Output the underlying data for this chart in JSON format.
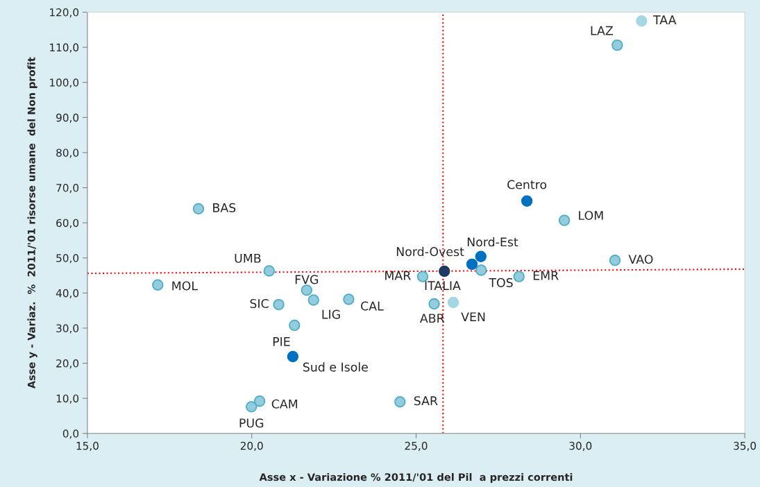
{
  "chart_data": {
    "type": "scatter",
    "xlabel": "Asse x - Variazione % 2011/'01 del Pil  a prezzi correnti",
    "ylabel": "Asse y - Variaz.  %  2011/'01 risorse umane  del Non profit",
    "xlim": [
      15,
      35
    ],
    "ylim": [
      0,
      120
    ],
    "xticks": [
      {
        "value": 15,
        "label": "15,0"
      },
      {
        "value": 20,
        "label": "20,0"
      },
      {
        "value": 25,
        "label": "25,0"
      },
      {
        "value": 30,
        "label": "30,0"
      },
      {
        "value": 35,
        "label": "35,0"
      }
    ],
    "yticks": [
      {
        "value": 0,
        "label": "0,0"
      },
      {
        "value": 10,
        "label": "10,0"
      },
      {
        "value": 20,
        "label": "20,0"
      },
      {
        "value": 30,
        "label": "30,0"
      },
      {
        "value": 40,
        "label": "40,0"
      },
      {
        "value": 50,
        "label": "50,0"
      },
      {
        "value": 60,
        "label": "60,0"
      },
      {
        "value": 70,
        "label": "70,0"
      },
      {
        "value": 80,
        "label": "80,0"
      },
      {
        "value": 90,
        "label": "90,0"
      },
      {
        "value": 100,
        "label": "100,0"
      },
      {
        "value": 110,
        "label": "110,0"
      },
      {
        "value": 120,
        "label": "120,0"
      }
    ],
    "grid": false,
    "legend": false,
    "marker": "circle",
    "series": [
      {
        "type": "line",
        "color": "#ff0000",
        "line_style": "dotted",
        "marker": "none",
        "x": [
          15,
          35
        ],
        "values": [
          45.6,
          46.8
        ]
      },
      {
        "color": "#93cddd",
        "x": [
          31.12,
          29.51,
          18.38,
          31.05,
          26.98,
          25.2,
          28.13,
          25.55,
          24.51,
          20.53,
          17.14,
          21.67,
          21.88,
          22.95,
          20.82,
          21.3,
          20.24,
          19.99
        ],
        "values": [
          110.6,
          60.7,
          64.0,
          49.3,
          46.5,
          44.7,
          44.7,
          36.9,
          9.0,
          46.3,
          42.3,
          40.8,
          38.0,
          38.2,
          36.7,
          30.8,
          9.2,
          7.6
        ]
      },
      {
        "color": "#a5d6e3",
        "x": [
          31.86,
          26.13
        ],
        "values": [
          117.5,
          37.3
        ]
      },
      {
        "color": "#0070c0",
        "x": [
          28.37,
          26.97,
          26.7,
          21.25
        ],
        "values": [
          66.2,
          50.4,
          48.2,
          21.9
        ]
      },
      {
        "color": "#1f3864",
        "x": [
          25.86
        ],
        "values": [
          46.2
        ]
      }
    ],
    "ref_lines": [
      {
        "axis": "x",
        "value": 25.82,
        "color": "#ff0000",
        "line_style": "dotted"
      }
    ],
    "annotations": [
      {
        "text": "TAA",
        "x": 31.86,
        "y": 117.5
      },
      {
        "text": "LAZ",
        "x": 31.12,
        "y": 110.6
      },
      {
        "text": "Centro",
        "x": 28.37,
        "y": 66.2
      },
      {
        "text": "LOM",
        "x": 29.51,
        "y": 60.7
      },
      {
        "text": "BAS",
        "x": 18.38,
        "y": 64.0
      },
      {
        "text": "Nord-Est",
        "x": 26.97,
        "y": 50.4
      },
      {
        "text": "Nord-Ovest",
        "x": 26.7,
        "y": 48.2
      },
      {
        "text": "VAO",
        "x": 31.05,
        "y": 49.3
      },
      {
        "text": "ITALIA",
        "x": 25.86,
        "y": 46.2
      },
      {
        "text": "TOS",
        "x": 26.98,
        "y": 46.5
      },
      {
        "text": "MAR",
        "x": 25.2,
        "y": 44.7
      },
      {
        "text": "EMR",
        "x": 28.13,
        "y": 44.7
      },
      {
        "text": "ABR",
        "x": 25.55,
        "y": 36.9
      },
      {
        "text": "VEN",
        "x": 26.13,
        "y": 37.3
      },
      {
        "text": "SAR",
        "x": 24.51,
        "y": 9.0
      },
      {
        "text": "UMB",
        "x": 20.53,
        "y": 46.3
      },
      {
        "text": "MOL",
        "x": 17.14,
        "y": 42.3
      },
      {
        "text": "FVG",
        "x": 21.67,
        "y": 40.8
      },
      {
        "text": "LIG",
        "x": 21.88,
        "y": 38.0
      },
      {
        "text": "CAL",
        "x": 22.95,
        "y": 38.2
      },
      {
        "text": "SIC",
        "x": 20.82,
        "y": 36.7
      },
      {
        "text": "PIE",
        "x": 21.3,
        "y": 30.8
      },
      {
        "text": "Sud e Isole",
        "x": 21.25,
        "y": 21.9
      },
      {
        "text": "CAM",
        "x": 20.24,
        "y": 9.2
      },
      {
        "text": "PUG",
        "x": 19.99,
        "y": 7.6
      }
    ]
  }
}
